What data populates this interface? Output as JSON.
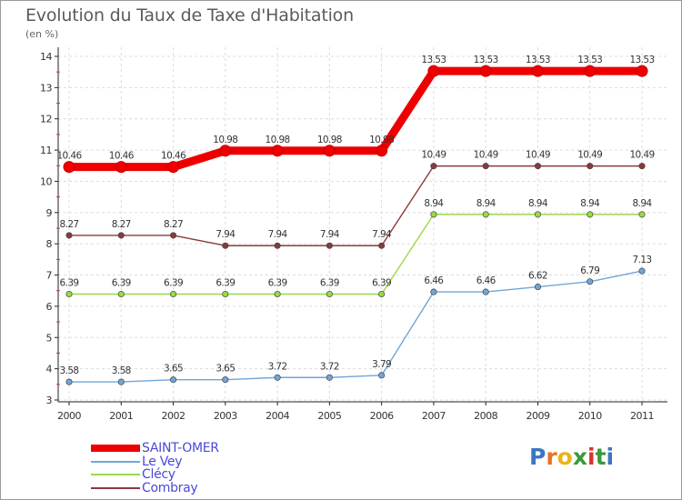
{
  "header": {
    "title": "Evolution du Taux de Taxe d'Habitation",
    "subtitle": "(en %)"
  },
  "logo": {
    "text": "Proxiti",
    "letter_colors": [
      "#3a76c2",
      "#e8731c",
      "#e8b31c",
      "#3a9a3a",
      "#d8352b",
      "#3a9a3a"
    ]
  },
  "chart_data": {
    "type": "line",
    "title": "Evolution du Taux de Taxe d'Habitation",
    "ylabel": "(en %)",
    "xlabel": "",
    "x": [
      "2000",
      "2001",
      "2002",
      "2003",
      "2004",
      "2005",
      "2006",
      "2007",
      "2008",
      "2009",
      "2010",
      "2011"
    ],
    "ylim": [
      3,
      14
    ],
    "yticks": [
      "3",
      "4",
      "5",
      "6",
      "7",
      "8",
      "9",
      "10",
      "11",
      "12",
      "13",
      "14"
    ],
    "grid": true,
    "legend_position": "bottom-left",
    "series": [
      {
        "name": "SAINT-OMER",
        "color": "#ee0000",
        "values": [
          10.46,
          10.46,
          10.46,
          10.98,
          10.98,
          10.98,
          10.98,
          13.53,
          13.53,
          13.53,
          13.53,
          13.53
        ],
        "labels": [
          "10.46",
          "10.46",
          "10.46",
          "10.98",
          "10.98",
          "10.98",
          "10.98",
          "13.53",
          "13.53",
          "13.53",
          "13.53",
          "13.53"
        ]
      },
      {
        "name": "Le Vey",
        "color": "#6fa6d8",
        "values": [
          3.58,
          3.58,
          3.65,
          3.65,
          3.72,
          3.72,
          3.79,
          6.46,
          6.46,
          6.62,
          6.79,
          7.13
        ],
        "labels": [
          "3.58",
          "3.58",
          "3.65",
          "3.65",
          "3.72",
          "3.72",
          "3.79",
          "6.46",
          "6.46",
          "6.62",
          "6.79",
          "7.13"
        ]
      },
      {
        "name": "Clécy",
        "color": "#9ad84a",
        "values": [
          6.39,
          6.39,
          6.39,
          6.39,
          6.39,
          6.39,
          6.39,
          8.94,
          8.94,
          8.94,
          8.94,
          8.94
        ],
        "labels": [
          "6.39",
          "6.39",
          "6.39",
          "6.39",
          "6.39",
          "6.39",
          "6.39",
          "8.94",
          "8.94",
          "8.94",
          "8.94",
          "8.94"
        ]
      },
      {
        "name": "Combray",
        "color": "#8a3a3a",
        "values": [
          8.27,
          8.27,
          8.27,
          7.94,
          7.94,
          7.94,
          7.94,
          10.49,
          10.49,
          10.49,
          10.49,
          10.49
        ],
        "labels": [
          "8.27",
          "8.27",
          "8.27",
          "7.94",
          "7.94",
          "7.94",
          "7.94",
          "10.49",
          "10.49",
          "10.49",
          "10.49",
          "10.49"
        ]
      }
    ]
  }
}
